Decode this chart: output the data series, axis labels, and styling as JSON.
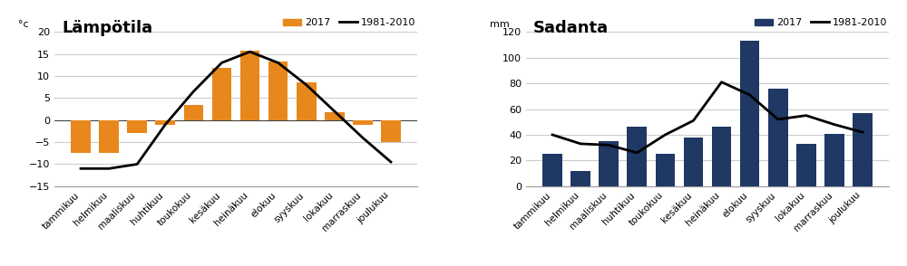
{
  "months": [
    "tammikuu",
    "helmikuu",
    "maaliskuu",
    "huhtikuu",
    "toukokuu",
    "kesäkuu",
    "heinäkuu",
    "elokuu",
    "syyskuu",
    "lokakuu",
    "marraskuu",
    "joulukuu"
  ],
  "temp_2017": [
    -7.5,
    -7.5,
    -3.0,
    -1.0,
    3.5,
    11.8,
    15.8,
    13.3,
    8.5,
    1.8,
    -1.0,
    -5.0
  ],
  "temp_avg": [
    -11.0,
    -11.0,
    -10.0,
    -1.0,
    6.5,
    13.0,
    15.5,
    13.0,
    8.0,
    2.0,
    -4.0,
    -9.5
  ],
  "precip_2017": [
    25,
    12,
    35,
    46,
    25,
    38,
    46,
    113,
    76,
    33,
    41,
    57
  ],
  "precip_avg": [
    40,
    33,
    32,
    26,
    40,
    51,
    81,
    71,
    52,
    55,
    48,
    42
  ],
  "bar_color_temp": "#E8871C",
  "bar_color_precip": "#1F3864",
  "line_color": "#000000",
  "title_temp": "Lämpötila",
  "title_precip": "Sadanta",
  "ylabel_temp": "°c",
  "ylabel_precip": "mm",
  "ylim_temp": [
    -15,
    20
  ],
  "ylim_precip": [
    0,
    120
  ],
  "yticks_temp": [
    -15,
    -10,
    -5,
    0,
    5,
    10,
    15,
    20
  ],
  "yticks_precip": [
    0,
    20,
    40,
    60,
    80,
    100,
    120
  ],
  "legend_bar_2017": "2017",
  "legend_line_avg": "1981-2010",
  "background_color": "#ffffff",
  "grid_color": "#cccccc"
}
